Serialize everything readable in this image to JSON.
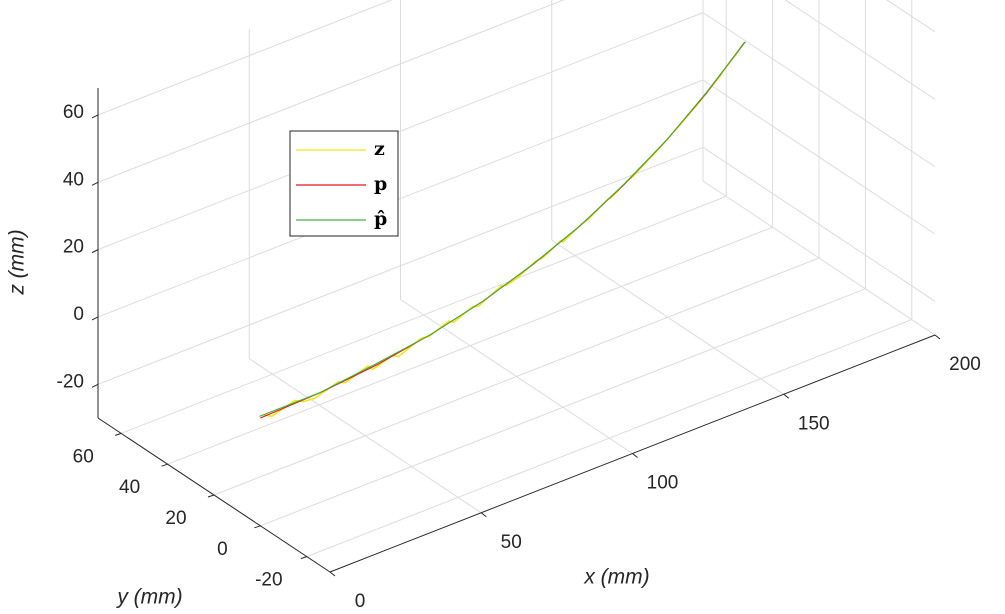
{
  "chart_data": {
    "type": "line3d",
    "xlabel": "x (mm)",
    "ylabel": "y (mm)",
    "zlabel": "z (mm)",
    "xlim": [
      0,
      200
    ],
    "ylim": [
      -30,
      70
    ],
    "zlim": [
      -30,
      68
    ],
    "xticks": [
      0,
      50,
      100,
      150,
      200
    ],
    "yticks": [
      -20,
      0,
      20,
      40,
      60
    ],
    "zticks": [
      -20,
      0,
      20,
      40,
      60
    ],
    "grid": true,
    "legend": "upper left",
    "series": [
      {
        "name": "z",
        "color": "#f5e31a",
        "x": [
          0,
          5,
          10,
          15,
          20,
          25,
          30,
          35,
          40,
          45,
          50,
          55,
          60,
          65,
          70,
          75,
          80,
          85,
          90,
          95,
          100,
          105,
          110,
          115,
          120,
          125,
          130,
          135,
          140,
          145,
          150,
          155,
          160,
          165,
          170,
          175,
          180,
          185,
          190,
          195,
          200
        ],
        "y": [
          -1.2,
          1.63,
          -1.87,
          1.09,
          2.52,
          -0.79,
          2.37,
          -0.81,
          3.68,
          1.83,
          5.65,
          2.33,
          5.48,
          3.49,
          7.97,
          6.11,
          10.32,
          6.99,
          11.33,
          13.33,
          11.4,
          15.53,
          13.73,
          19.59,
          17.92,
          21.91,
          19.57,
          24.49,
          23.88,
          29.33,
          28.05,
          32.83,
          31.28,
          36.19,
          39.97,
          38.21,
          43.32,
          42.89,
          48.53,
          48.63,
          53.2
        ],
        "z": [
          3.5,
          0.01,
          4.54,
          1.1,
          -0.32,
          4.27,
          0.89,
          5.54,
          0.7,
          3.89,
          0.09,
          5.32,
          2.58,
          6.35,
          2.14,
          5.96,
          2.3,
          8.16,
          4.54,
          3.95,
          8.38,
          5.32,
          9.79,
          4.79,
          9.3,
          6.84,
          12.39,
          8.97,
          12.58,
          8.7,
          13.34,
          10.51,
          15.7,
          12.91,
          11.64,
          17.4,
          14.68,
          18.97,
          15.79,
          19.64,
          18
        ]
      },
      {
        "name": "p",
        "color": "#e8141c",
        "x": [
          0,
          20,
          40,
          60,
          80,
          100,
          120,
          140,
          160,
          180,
          200
        ],
        "y": [
          0,
          0.5,
          2.1,
          4.7,
          8.3,
          13,
          18.7,
          25.5,
          33.3,
          42.1,
          52
        ],
        "z": [
          2,
          2.2,
          2.7,
          3.6,
          4.8,
          6.4,
          8.3,
          10.6,
          13.2,
          16.2,
          19.5
        ]
      },
      {
        "name": "p̂",
        "color": "#3cb43c",
        "x": [
          0,
          20,
          40,
          60,
          80,
          100,
          120,
          140,
          160,
          180,
          200
        ],
        "y": [
          0.4,
          0.7,
          2.4,
          4.9,
          8.1,
          13.3,
          18.5,
          25.8,
          33.1,
          42.4,
          51.7
        ],
        "z": [
          2.3,
          2.1,
          2.9,
          3.4,
          5,
          6.2,
          8.5,
          10.4,
          13.4,
          16,
          19.7
        ]
      }
    ]
  }
}
